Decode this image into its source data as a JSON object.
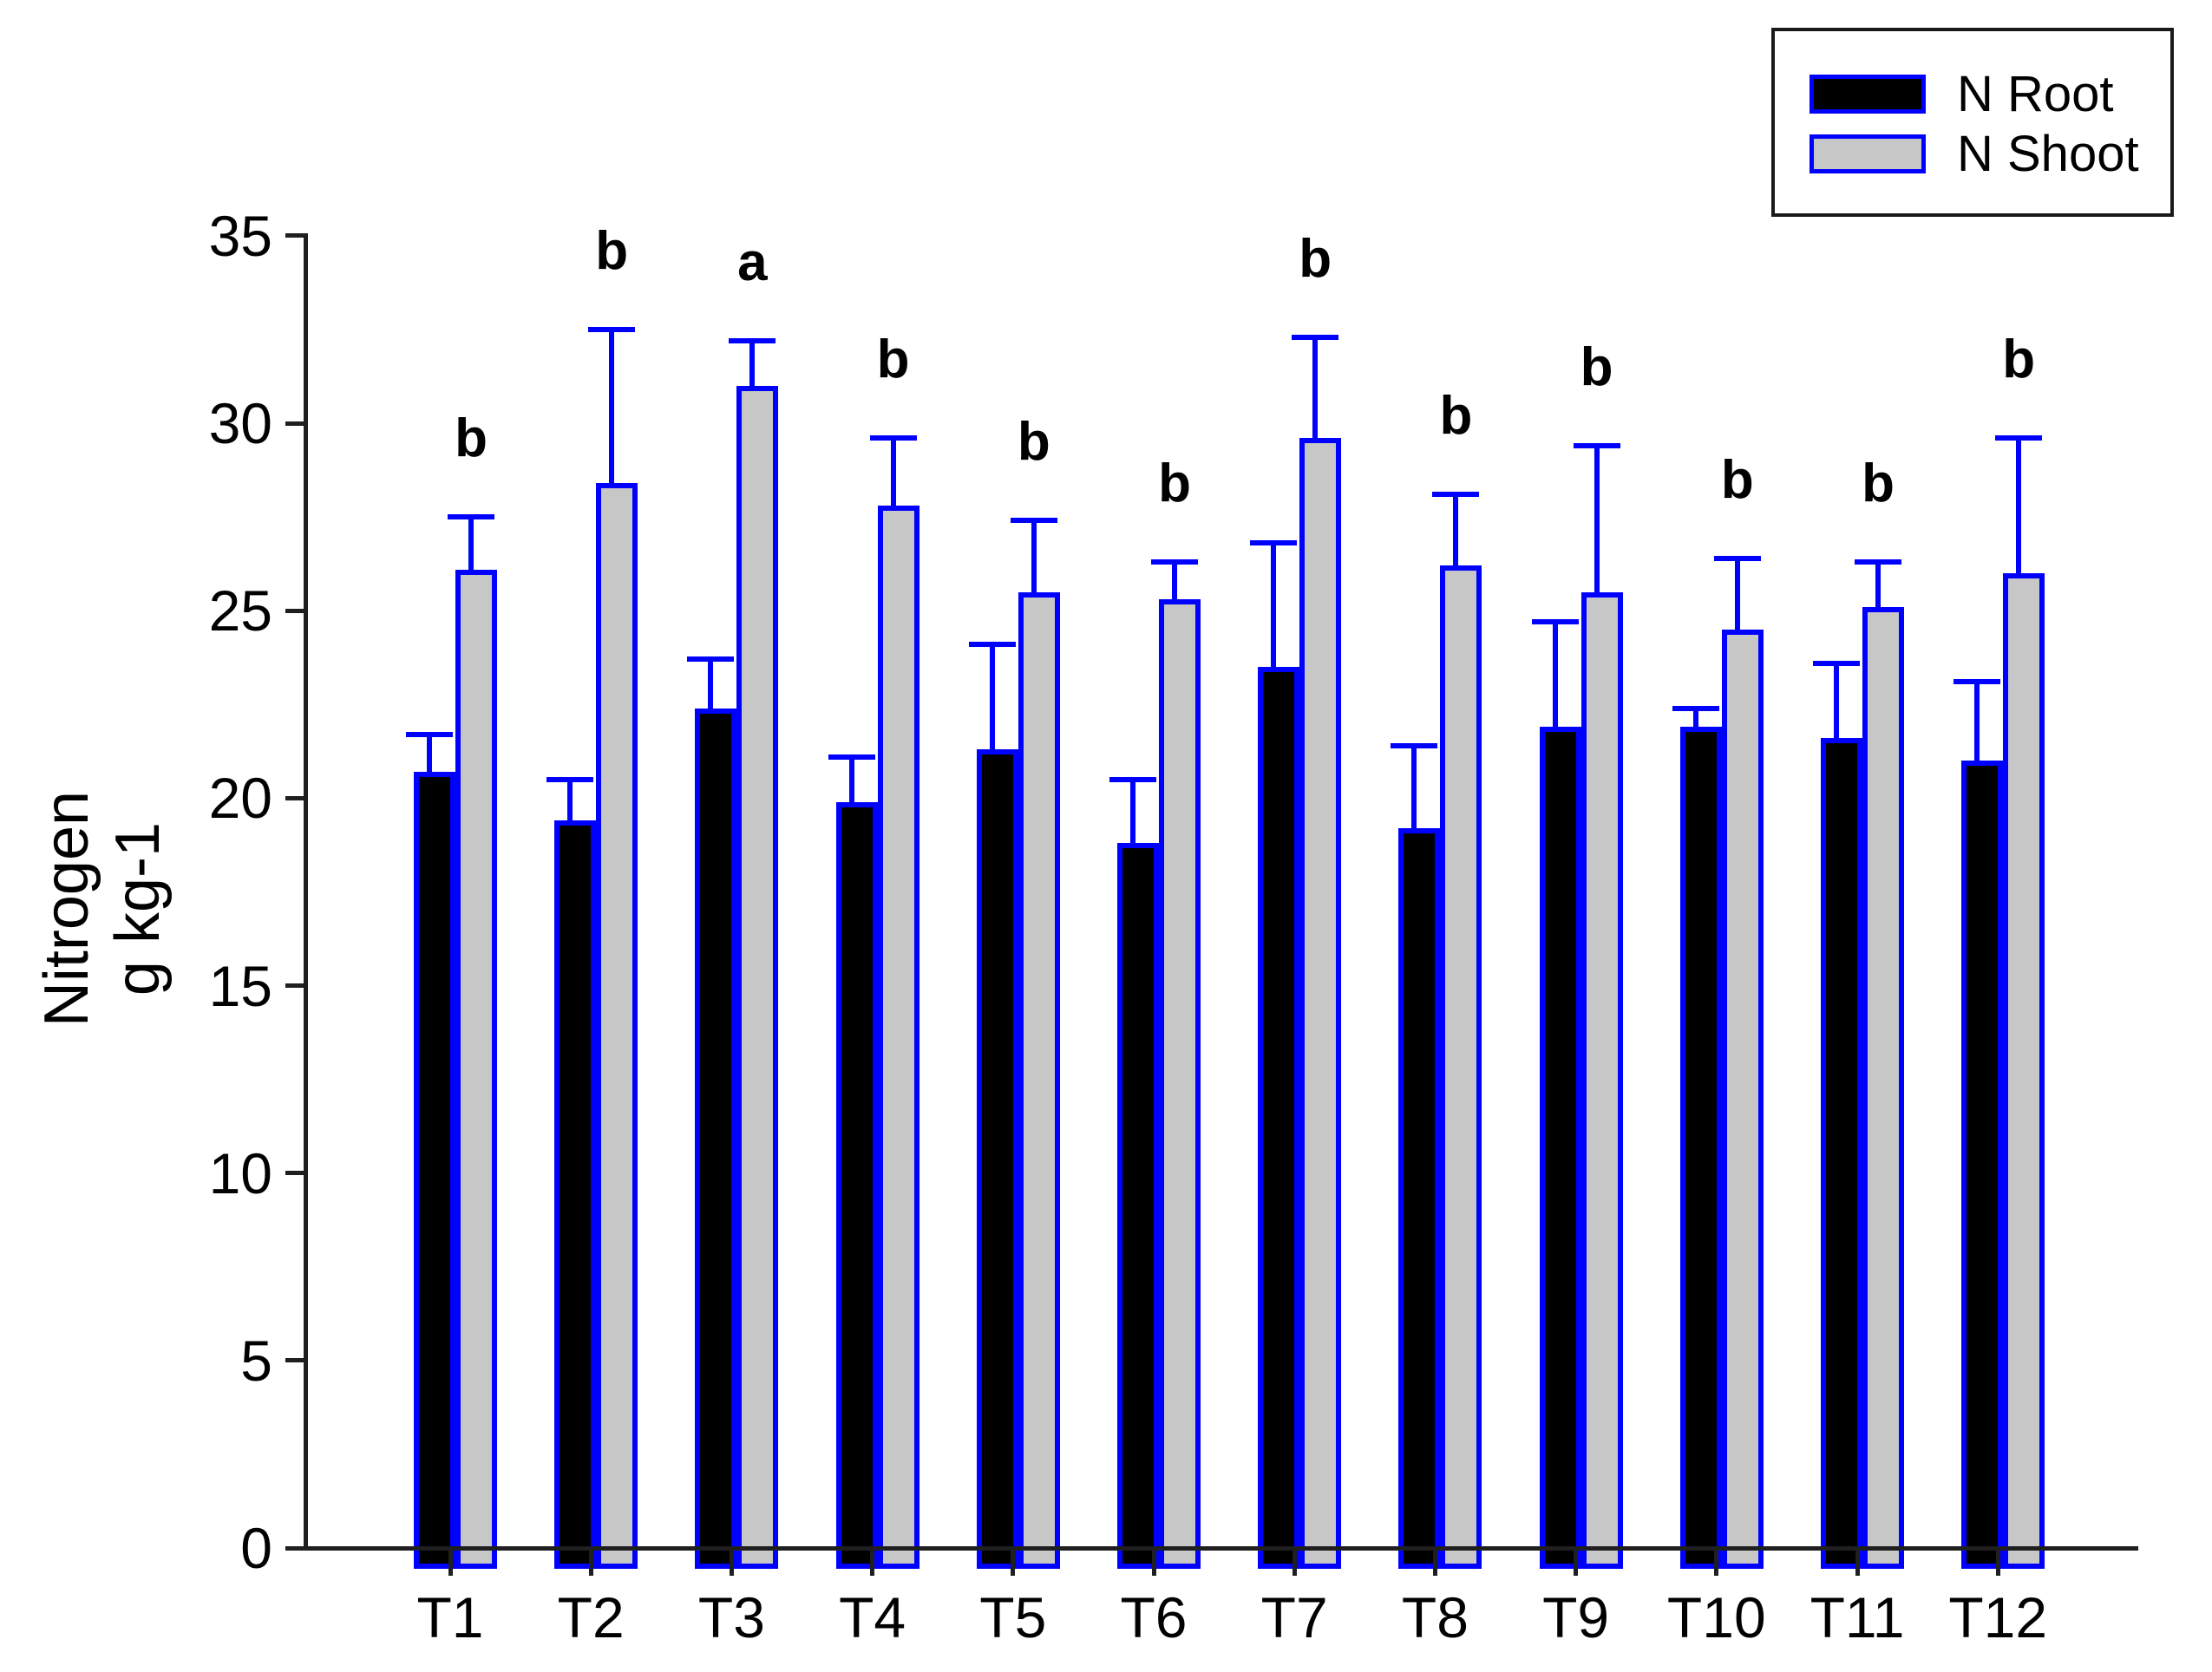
{
  "chart_data": {
    "type": "bar",
    "title": "",
    "categories": [
      "T1",
      "T2",
      "T3",
      "T4",
      "T5",
      "T6",
      "T7",
      "T8",
      "T9",
      "T10",
      "T11",
      "T12"
    ],
    "series": [
      {
        "name": "N Root",
        "fill_color": "#000000",
        "values": [
          20.7,
          19.4,
          22.4,
          19.9,
          21.3,
          18.8,
          23.5,
          19.2,
          21.9,
          21.9,
          21.6,
          21.0
        ],
        "errors": [
          1.0,
          1.1,
          1.3,
          1.2,
          2.8,
          1.7,
          3.3,
          2.2,
          2.8,
          0.5,
          2.0,
          2.1
        ]
      },
      {
        "name": "N Shoot",
        "fill_color": "#c7c7c7",
        "values": [
          26.1,
          28.4,
          31.0,
          27.8,
          25.5,
          25.3,
          29.6,
          26.2,
          25.5,
          24.5,
          25.1,
          26.0
        ],
        "errors": [
          1.4,
          4.1,
          1.2,
          1.8,
          1.9,
          1.0,
          2.7,
          1.9,
          3.9,
          1.9,
          1.2,
          3.6
        ]
      }
    ],
    "sig_letters": [
      "b",
      "b",
      "a",
      "b",
      "b",
      "b",
      "b",
      "b",
      "b",
      "b",
      "b",
      "b"
    ],
    "ylabel_line1": "Nitrogen",
    "ylabel_line2": "g kg-1",
    "xlabel": "",
    "ylim": [
      0,
      35
    ],
    "yticks": [
      0,
      5,
      10,
      15,
      20,
      25,
      30,
      35
    ],
    "grid": false,
    "legend_position": "top-right",
    "bar_border_color": "#0000ff",
    "error_bar_color": "#0000ff",
    "axis_color": "#1f1f1f",
    "text_color": "#000000",
    "background_color": "#ffffff"
  }
}
